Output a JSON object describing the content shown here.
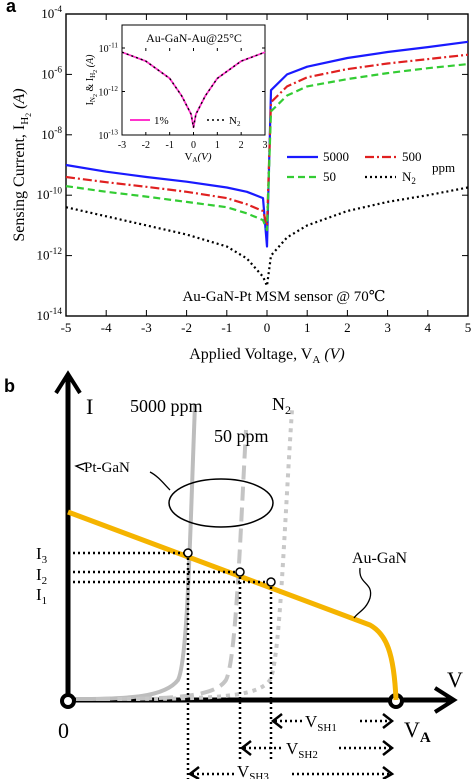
{
  "panel_a": {
    "letter": "a",
    "ylabel": "Sensing Current, I",
    "ylabel_sub": "H",
    "ylabel_sub2": "2",
    "ylabel_unit": "(A)",
    "xlabel": "Applied Voltage, V",
    "xlabel_sub": "A",
    "xlabel_unit": "(V)",
    "annotation": "Au-GaN-Pt MSM sensor @ 70℃",
    "legend_suffix": "ppm",
    "legend": [
      {
        "label": "5000",
        "color": "#1a1aff"
      },
      {
        "label": "500",
        "color": "#e02020"
      },
      {
        "label": "50",
        "color": "#33cc33"
      },
      {
        "label": "N",
        "sub": "2",
        "color": "#000000"
      }
    ],
    "inset": {
      "title": "Au-GaN-Au@25°C",
      "ylabel": "I",
      "xlabel": "V",
      "legend": [
        {
          "label": "1%",
          "color": "#ff33cc"
        },
        {
          "label": "N",
          "sub": "2",
          "color": "#000000"
        }
      ]
    }
  },
  "chart_data": [
    {
      "type": "line",
      "title": "",
      "xlabel": "Applied Voltage, VA (V)",
      "ylabel": "Sensing Current, IH2 (A)",
      "xlim": [
        -5,
        5
      ],
      "ylim": [
        1e-14,
        0.0001
      ],
      "yscale": "log",
      "xticks": [
        -5,
        -4,
        -3,
        -2,
        -1,
        0,
        1,
        2,
        3,
        4,
        5
      ],
      "yticks": [
        "10^-14",
        "10^-12",
        "10^-10",
        "10^-8",
        "10^-6",
        "10^-4"
      ],
      "x": [
        -5,
        -4,
        -3,
        -2,
        -1,
        -0.5,
        -0.1,
        0,
        0.1,
        0.5,
        1,
        2,
        3,
        4,
        5
      ],
      "series": [
        {
          "name": "5000",
          "values": [
            1e-09,
            6e-10,
            4e-10,
            2.8e-10,
            1.8e-10,
            1.3e-10,
            8e-11,
            2e-12,
            3e-07,
            1e-06,
            1.8e-06,
            3.5e-06,
            5.5e-06,
            8e-06,
            1.2e-05
          ]
        },
        {
          "name": "500",
          "values": [
            4e-10,
            2.7e-10,
            1.9e-10,
            1.3e-10,
            8e-11,
            5e-11,
            3e-11,
            1e-11,
            1.2e-07,
            4e-07,
            8e-07,
            1.5e-06,
            2.3e-06,
            3.2e-06,
            4.5e-06
          ]
        },
        {
          "name": "50",
          "values": [
            2e-10,
            1.3e-10,
            9e-11,
            6e-11,
            4e-11,
            2.5e-11,
            1.5e-11,
            7e-12,
            6e-08,
            2e-07,
            4e-07,
            7e-07,
            1.1e-06,
            1.6e-06,
            2.2e-06
          ]
        },
        {
          "name": "N2",
          "values": [
            4e-11,
            2e-11,
            1e-11,
            5e-12,
            2e-12,
            8e-13,
            2e-13,
            1e-13,
            1e-12,
            4e-12,
            1e-11,
            3e-11,
            6e-11,
            1e-10,
            1.8e-10
          ]
        }
      ],
      "legend_position": "center-right",
      "annotations": [
        "Au-GaN-Pt MSM sensor @ 70℃"
      ]
    },
    {
      "type": "line",
      "title": "Au-GaN-Au@25°C",
      "xlabel": "VA(V)",
      "ylabel": "IN2 & IH2 (A)",
      "xlim": [
        -3,
        3
      ],
      "ylim": [
        1e-13,
        1e-11
      ],
      "yscale": "log",
      "xticks": [
        -3,
        -2,
        -1,
        0,
        1,
        2,
        3
      ],
      "yticks": [
        "10^-13",
        "10^-12",
        "10^-11"
      ],
      "x": [
        -3,
        -2,
        -1,
        -0.5,
        -0.1,
        0,
        0.1,
        0.5,
        1,
        2,
        3
      ],
      "series": [
        {
          "name": "1%",
          "values": [
            8e-12,
            5e-12,
            2e-12,
            8e-13,
            3e-13,
            1.5e-13,
            3e-13,
            8e-13,
            2e-12,
            5e-12,
            8e-12
          ]
        },
        {
          "name": "N2",
          "values": [
            8e-12,
            5e-12,
            2e-12,
            8e-13,
            3e-13,
            1.5e-13,
            3e-13,
            8e-13,
            2e-12,
            5e-12,
            8e-12
          ]
        }
      ],
      "legend_position": "bottom"
    }
  ],
  "panel_b": {
    "letter": "b",
    "axis_i": "I",
    "axis_v": "V",
    "origin": "0",
    "va": "V",
    "va_sub": "A",
    "curve_5000": "5000 ppm",
    "curve_50": "50 ppm",
    "curve_n2": "N",
    "curve_n2_sub": "2",
    "pt_gan": "Pt-GaN",
    "au_gan": "Au-GaN",
    "i3": "I",
    "i3_sub": "3",
    "i2": "I",
    "i2_sub": "2",
    "i1": "I",
    "i1_sub": "1",
    "vsh1": "V",
    "vsh1_sub": "SH1",
    "vsh2": "V",
    "vsh2_sub": "SH2",
    "vsh3": "V",
    "vsh3_sub": "SH3",
    "colors": {
      "au_gan": "#f5b400",
      "pt_gan": "#bdbdbd"
    }
  }
}
